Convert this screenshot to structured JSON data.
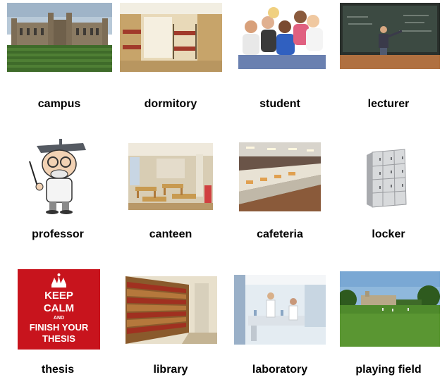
{
  "items": [
    {
      "label": "campus",
      "icon": "campus-photo"
    },
    {
      "label": "dormitory",
      "icon": "dormitory-photo"
    },
    {
      "label": "student",
      "icon": "students-photo"
    },
    {
      "label": "lecturer",
      "icon": "lecturer-photo"
    },
    {
      "label": "professor",
      "icon": "professor-cartoon"
    },
    {
      "label": "canteen",
      "icon": "canteen-photo"
    },
    {
      "label": "cafeteria",
      "icon": "cafeteria-photo"
    },
    {
      "label": "locker",
      "icon": "locker-photo"
    },
    {
      "label": "thesis",
      "icon": "keep-calm-poster"
    },
    {
      "label": "library",
      "icon": "library-photo"
    },
    {
      "label": "laboratory",
      "icon": "laboratory-photo"
    },
    {
      "label": "playing field",
      "icon": "playing-field-photo"
    }
  ],
  "poster": {
    "line1": "KEEP",
    "line2": "CALM",
    "line3": "AND",
    "line4": "FINISH YOUR",
    "line5": "THESIS"
  },
  "colors": {
    "poster_red": "#c8141d",
    "label_text": "#000000",
    "background": "#ffffff"
  }
}
